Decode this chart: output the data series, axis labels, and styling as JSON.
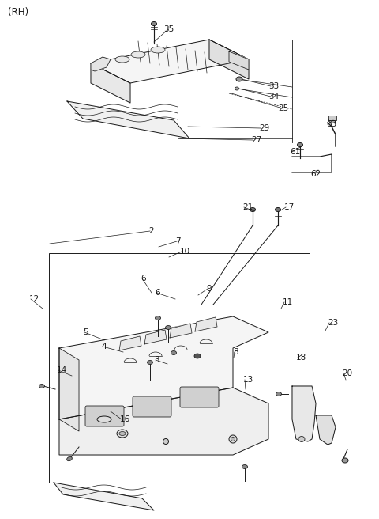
{
  "background_color": "#ffffff",
  "line_color": "#1a1a1a",
  "text_color": "#1a1a1a",
  "rh_label": "(RH)",
  "fig_w": 4.8,
  "fig_h": 6.56,
  "dpi": 100
}
